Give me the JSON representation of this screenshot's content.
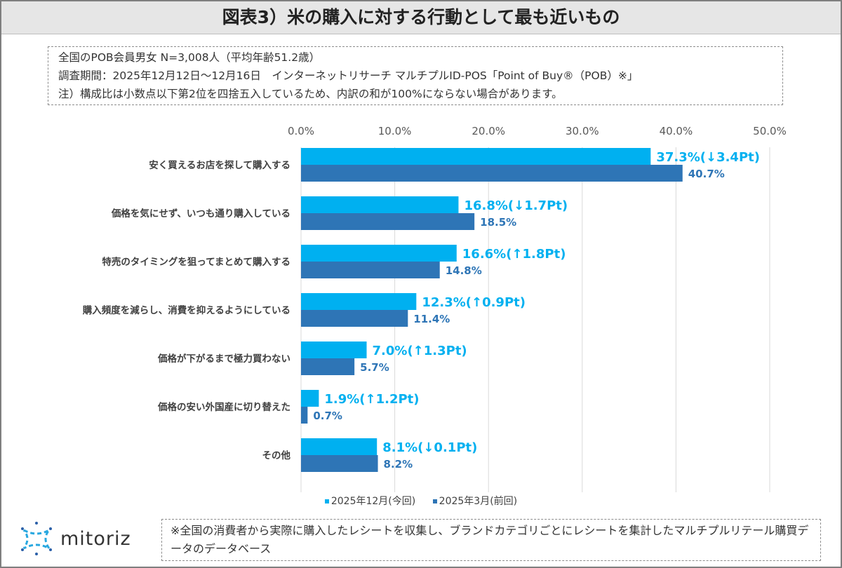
{
  "title": "図表3）米の購入に対する行動として最も近いもの",
  "note": {
    "line1": "全国のPOB会員男女 N=3,008人（平均年齢51.2歳）",
    "line2": "調査期間：2025年12月12日～12月16日　インターネットリサーチ マルチプルID-POS「Point of Buy®（POB）※」",
    "line3": "注）構成比は小数点以下第2位を四捨五入しているため、内訳の和が100%にならない場合があります。"
  },
  "chart_data": {
    "type": "bar",
    "orientation": "horizontal",
    "categories": [
      "安く買えるお店を探して購入する",
      "価格を気にせず、いつも通り購入している",
      "特売のタイミングを狙ってまとめて購入する",
      "購入頻度を減らし、消費を抑えるようにしている",
      "価格が下がるまで極力買わない",
      "価格の安い外国産に切り替えた",
      "その他"
    ],
    "series": [
      {
        "name": "2025年12月(今回)",
        "color": "#00b0f0",
        "values": [
          37.3,
          16.8,
          16.6,
          12.3,
          7.0,
          1.9,
          8.1
        ],
        "labels": [
          "37.3%(↓3.4Pt)",
          "16.8%(↓1.7Pt)",
          "16.6%(↑1.8Pt)",
          "12.3%(↑0.9Pt)",
          "7.0%(↑1.3Pt)",
          "1.9%(↑1.2Pt)",
          "8.1%(↓0.1Pt)"
        ]
      },
      {
        "name": "2025年3月(前回)",
        "color": "#2e75b6",
        "values": [
          40.7,
          18.5,
          14.8,
          11.4,
          5.7,
          0.7,
          8.2
        ],
        "labels": [
          "40.7%",
          "18.5%",
          "14.8%",
          "11.4%",
          "5.7%",
          "0.7%",
          "8.2%"
        ]
      }
    ],
    "xlim": [
      0,
      50
    ],
    "ticks": [
      "0.0%",
      "10.0%",
      "20.0%",
      "30.0%",
      "40.0%",
      "50.0%"
    ],
    "grid": true,
    "legend": "bottom"
  },
  "logo": "mitoriz",
  "footnote": "※全国の消費者から実際に購入したレシートを収集し、ブランドカテゴリごとにレシートを集計したマルチプルリテール購買データのデータベース"
}
